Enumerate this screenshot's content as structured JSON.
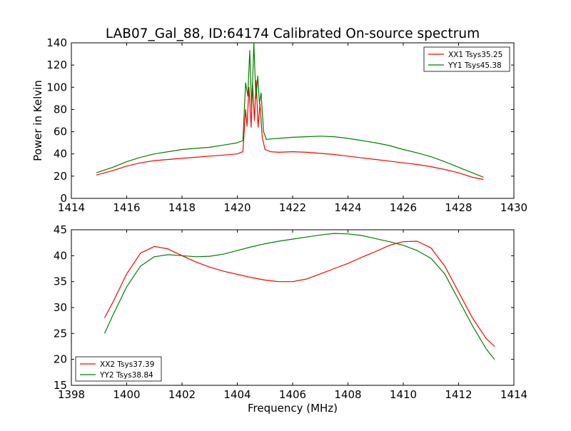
{
  "figure": {
    "title": "LAB07_Gal_88, ID:64174 Calibrated On-source spectrum",
    "xlabel": "Frequency (MHz)"
  },
  "chart_data": [
    {
      "type": "line",
      "ylabel": "Power in Kelvin",
      "xlim": [
        1414,
        1430
      ],
      "ylim": [
        0,
        140
      ],
      "xticks": [
        1414,
        1416,
        1418,
        1420,
        1422,
        1424,
        1426,
        1428,
        1430
      ],
      "yticks": [
        0,
        20,
        40,
        60,
        80,
        100,
        120,
        140
      ],
      "grid": false,
      "legend_position": "upper right",
      "series": [
        {
          "name": "XX1 Tsys35.25",
          "color": "#ff0000",
          "x": [
            1414.9,
            1415.5,
            1416.0,
            1416.5,
            1417.0,
            1417.5,
            1418.0,
            1418.5,
            1419.0,
            1419.5,
            1420.0,
            1420.2,
            1420.3,
            1420.35,
            1420.42,
            1420.5,
            1420.55,
            1420.62,
            1420.68,
            1420.75,
            1420.82,
            1420.9,
            1421.0,
            1421.2,
            1421.5,
            1422.0,
            1422.5,
            1423.0,
            1423.5,
            1424.0,
            1424.5,
            1425.0,
            1425.5,
            1426.0,
            1426.5,
            1427.0,
            1427.5,
            1428.0,
            1428.5,
            1428.9
          ],
          "values": [
            21,
            25,
            29,
            32,
            34,
            35,
            36,
            37,
            38,
            39,
            40,
            42,
            80,
            65,
            100,
            64,
            104,
            70,
            106,
            64,
            85,
            55,
            44,
            42,
            41.5,
            42,
            41.5,
            40.5,
            39.5,
            38,
            36.5,
            35,
            33.5,
            32,
            30.5,
            28.5,
            26,
            23,
            19,
            17
          ]
        },
        {
          "name": "YY1 Tsys45.38",
          "color": "#008000",
          "x": [
            1414.9,
            1415.5,
            1416.0,
            1416.5,
            1417.0,
            1417.5,
            1418.0,
            1418.5,
            1419.0,
            1419.5,
            1420.0,
            1420.2,
            1420.3,
            1420.38,
            1420.45,
            1420.52,
            1420.6,
            1420.67,
            1420.74,
            1420.8,
            1420.86,
            1420.95,
            1421.05,
            1421.2,
            1421.5,
            1422.0,
            1422.5,
            1423.0,
            1423.5,
            1424.0,
            1424.5,
            1425.0,
            1425.5,
            1426.0,
            1426.5,
            1427.0,
            1427.5,
            1428.0,
            1428.5,
            1428.9
          ],
          "values": [
            23,
            28,
            33,
            37,
            40,
            42,
            44,
            45,
            46,
            48,
            50,
            52,
            104,
            92,
            133,
            80,
            140,
            90,
            110,
            85,
            95,
            60,
            53,
            53.5,
            54,
            55,
            55.5,
            56,
            55.5,
            54,
            52,
            50,
            47.5,
            44,
            41,
            37.5,
            33,
            28,
            23,
            19
          ]
        }
      ]
    },
    {
      "type": "line",
      "ylabel": "",
      "xlim": [
        1398,
        1414
      ],
      "ylim": [
        15,
        45
      ],
      "xticks": [
        1398,
        1400,
        1402,
        1404,
        1406,
        1408,
        1410,
        1412,
        1414
      ],
      "yticks": [
        15,
        20,
        25,
        30,
        35,
        40,
        45
      ],
      "grid": false,
      "legend_position": "lower left",
      "series": [
        {
          "name": "XX2 Tsys37.39",
          "color": "#ff0000",
          "x": [
            1399.2,
            1399.5,
            1400.0,
            1400.5,
            1401.0,
            1401.5,
            1402.0,
            1402.5,
            1403.0,
            1403.5,
            1404.0,
            1404.5,
            1405.0,
            1405.5,
            1406.0,
            1406.5,
            1407.0,
            1407.5,
            1408.0,
            1408.5,
            1409.0,
            1409.5,
            1410.0,
            1410.5,
            1411.0,
            1411.5,
            1412.0,
            1412.5,
            1413.0,
            1413.3
          ],
          "values": [
            28,
            31,
            36.5,
            40.5,
            41.8,
            41.3,
            40,
            38.8,
            37.8,
            37,
            36.4,
            35.8,
            35.3,
            35,
            35,
            35.5,
            36.5,
            37.5,
            38.5,
            39.7,
            40.8,
            42,
            42.7,
            42.8,
            41.5,
            38,
            33,
            28,
            24,
            22.5
          ]
        },
        {
          "name": "YY2 Tsys38.84",
          "color": "#008000",
          "x": [
            1399.2,
            1399.5,
            1400.0,
            1400.5,
            1401.0,
            1401.5,
            1402.0,
            1402.5,
            1403.0,
            1403.5,
            1404.0,
            1404.5,
            1405.0,
            1405.5,
            1406.0,
            1406.5,
            1407.0,
            1407.5,
            1408.0,
            1408.5,
            1409.0,
            1409.5,
            1410.0,
            1410.5,
            1411.0,
            1411.5,
            1412.0,
            1412.5,
            1413.0,
            1413.3
          ],
          "values": [
            25,
            28.5,
            34,
            38,
            39.8,
            40.2,
            40,
            39.8,
            39.9,
            40.3,
            41,
            41.7,
            42.3,
            42.8,
            43.2,
            43.6,
            44,
            44.3,
            44.2,
            43.9,
            43.3,
            42.7,
            42,
            41,
            39.5,
            36.5,
            31.5,
            26.5,
            22,
            20
          ]
        }
      ]
    }
  ]
}
